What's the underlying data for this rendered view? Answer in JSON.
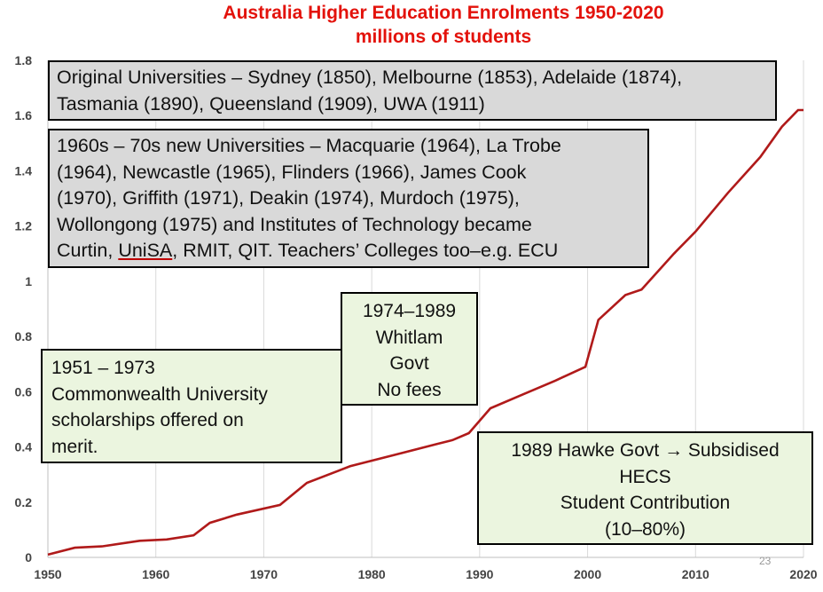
{
  "title": {
    "line1": "Australia Higher Education Enrolments 1950-2020",
    "line2": "millions of students"
  },
  "colors": {
    "title": "#e3120b",
    "line": "#b01a1a",
    "grey_box": "#d9d9d9",
    "green_box": "#ebf5df",
    "grid": "#d9d9d9"
  },
  "chart_data": {
    "type": "line",
    "xlim": [
      1950,
      2020
    ],
    "ylim": [
      0,
      1.8
    ],
    "x_ticks": [
      1950,
      1960,
      1970,
      1980,
      1990,
      2000,
      2010,
      2020
    ],
    "y_ticks": [
      0,
      0.2,
      0.4,
      0.6,
      0.8,
      1,
      1.2,
      1.4,
      1.6,
      1.8
    ],
    "y_tick_labels": [
      "0",
      "0.2",
      "0.4",
      "0.6",
      "0.8",
      "1",
      "1.2",
      "1.4",
      "1.6",
      "1.8"
    ],
    "grid": "vertical",
    "series": [
      {
        "x": [
          1950,
          1952.5,
          1955,
          1958.5,
          1961,
          1963.5,
          1965,
          1967.5,
          1971.5,
          1974,
          1978,
          1982,
          1986,
          1987.5,
          1989,
          1991,
          1994,
          1997,
          1999.8,
          2001,
          2003.5,
          2005,
          2008,
          2010,
          2013,
          2016,
          2018,
          2019.5,
          2020
        ],
        "y": [
          0.01,
          0.035,
          0.04,
          0.06,
          0.065,
          0.08,
          0.125,
          0.155,
          0.19,
          0.27,
          0.33,
          0.37,
          0.41,
          0.425,
          0.45,
          0.54,
          0.59,
          0.64,
          0.69,
          0.86,
          0.95,
          0.97,
          1.1,
          1.18,
          1.32,
          1.45,
          1.56,
          1.62,
          1.62
        ]
      }
    ]
  },
  "boxes": {
    "original": {
      "lines": [
        "Original Universities – Sydney (1850), Melbourne (1853), Adelaide (1874),",
        "Tasmania (1890), Queensland (1909), UWA (1911)"
      ]
    },
    "new_unis": {
      "lines": [
        "1960s – 70s new Universities – Macquarie (1964), La Trobe",
        "(1964), Newcastle (1965), Flinders (1966), James Cook",
        "(1970), Griffith (1971), Deakin (1974),  Murdoch (1975),",
        "Wollongong (1975) and Institutes of Technology became"
      ],
      "last_pre": "Curtin, ",
      "last_u": "UniSA",
      "last_post": ", RMIT, QIT. Teachers’ Colleges too–e.g. ECU"
    },
    "whitlam": {
      "lines": [
        "1974–1989",
        "Whitlam",
        "Govt",
        "No fees"
      ]
    },
    "commonwealth": {
      "lines": [
        "1951 – 1973",
        "Commonwealth University",
        "scholarships offered on",
        "merit."
      ]
    },
    "hawke": {
      "lines": [
        "1989 Hawke Govt → Subsidised",
        "HECS",
        "Student Contribution",
        "(10–80%)"
      ]
    }
  },
  "slide_number": "23"
}
